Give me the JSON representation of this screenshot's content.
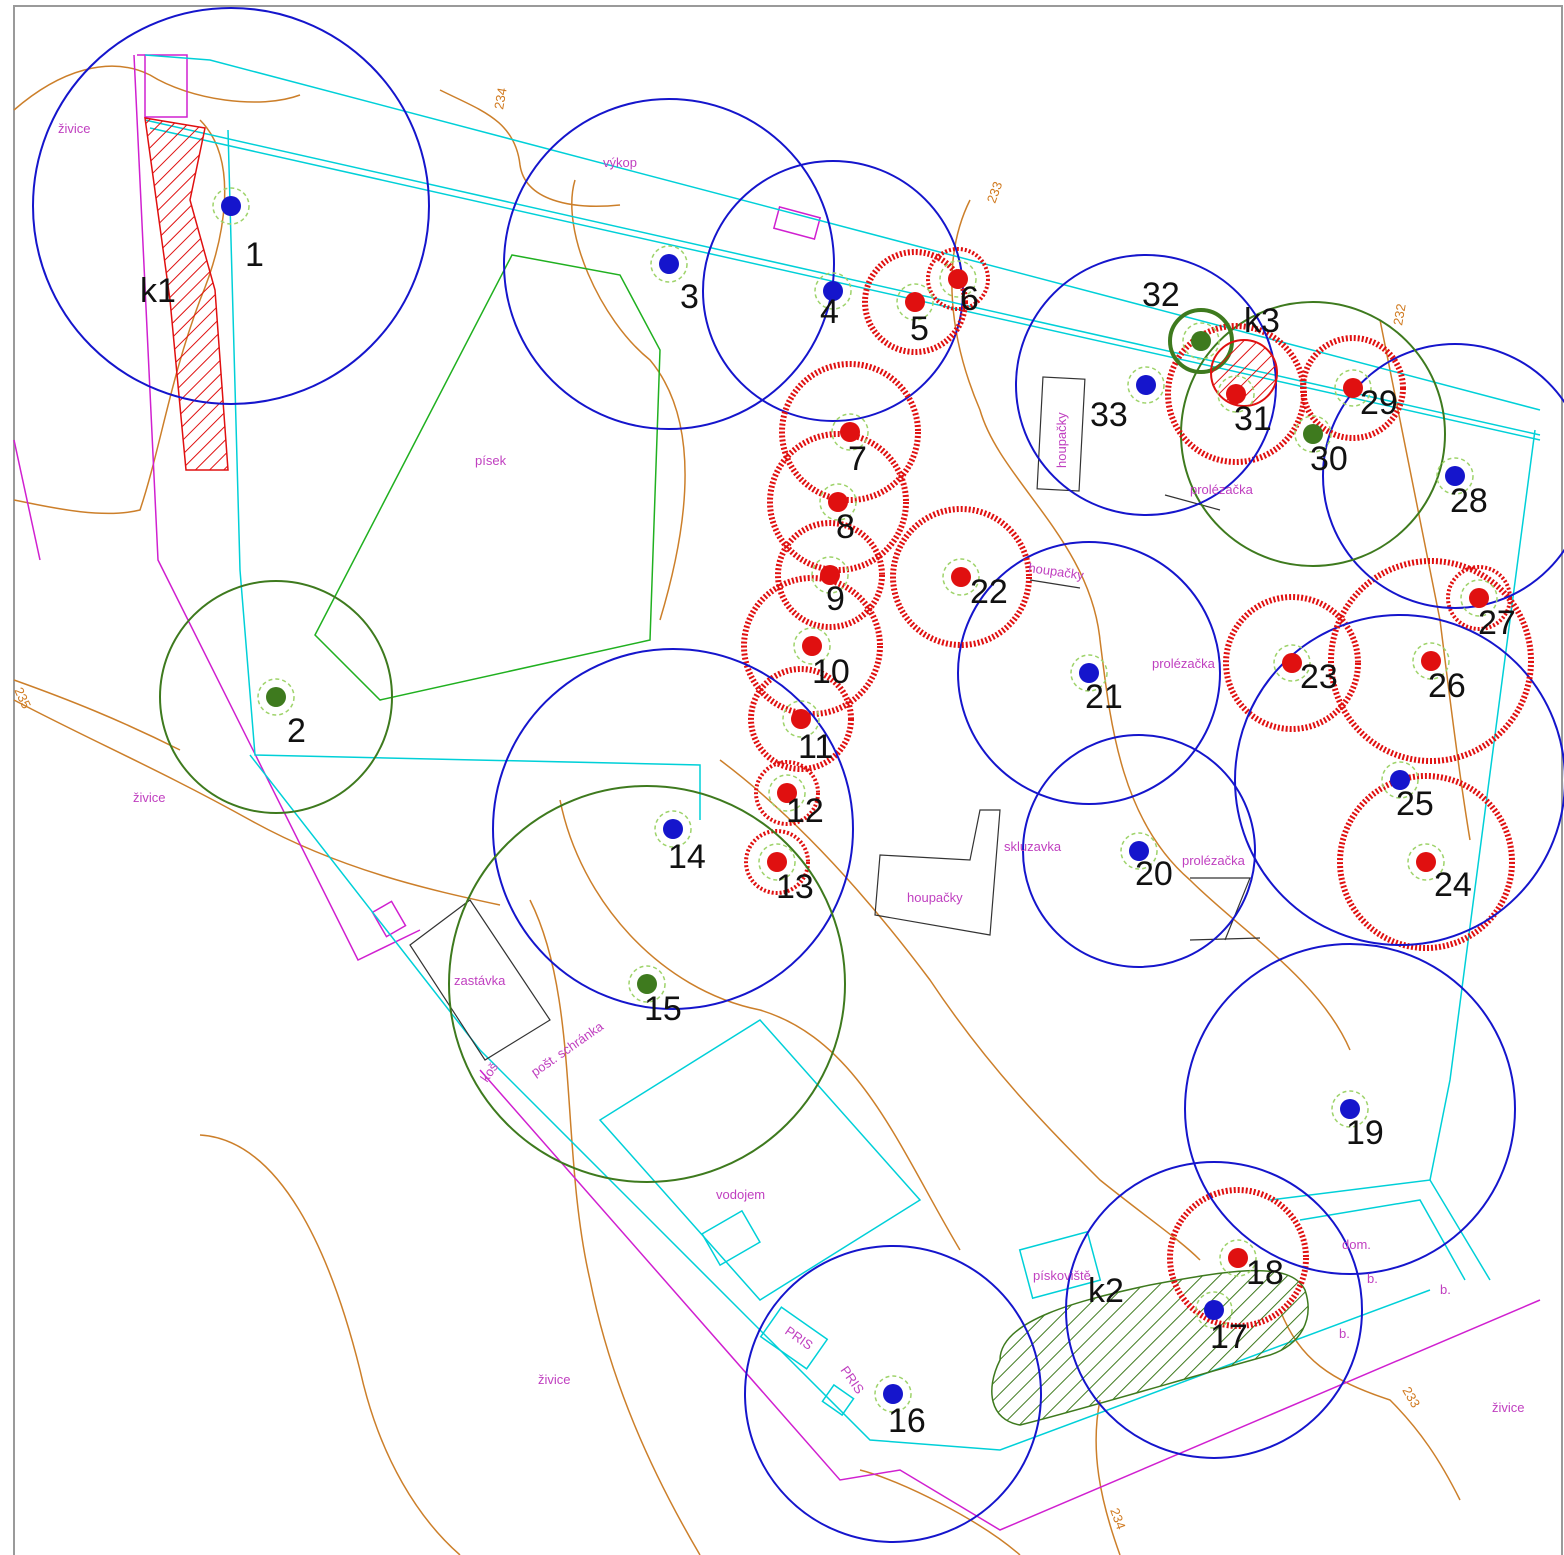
{
  "colors": {
    "frame": "#9a9a9a",
    "existing": "#1515cc",
    "new": "#3e7a1e",
    "removed": "#e01010",
    "zone": "#1515cc",
    "path": "#00d0d8",
    "fence": "#d020d0",
    "contour": "#cc7f2a",
    "lawn": "#20b020",
    "label": "#c040c0",
    "number": "#111111"
  },
  "trees": [
    {
      "id": "1",
      "label": "1",
      "status": "existing"
    },
    {
      "id": "2",
      "label": "2",
      "status": "new"
    },
    {
      "id": "3",
      "label": "3",
      "status": "existing"
    },
    {
      "id": "4",
      "label": "4",
      "status": "existing"
    },
    {
      "id": "5",
      "label": "5",
      "status": "removed"
    },
    {
      "id": "6",
      "label": "6",
      "status": "removed"
    },
    {
      "id": "7",
      "label": "7",
      "status": "removed"
    },
    {
      "id": "8",
      "label": "8",
      "status": "removed"
    },
    {
      "id": "9",
      "label": "9",
      "status": "removed"
    },
    {
      "id": "10",
      "label": "10",
      "status": "removed"
    },
    {
      "id": "11",
      "label": "11",
      "status": "removed"
    },
    {
      "id": "12",
      "label": "12",
      "status": "removed"
    },
    {
      "id": "13",
      "label": "13",
      "status": "removed"
    },
    {
      "id": "14",
      "label": "14",
      "status": "existing"
    },
    {
      "id": "15",
      "label": "15",
      "status": "new"
    },
    {
      "id": "16",
      "label": "16",
      "status": "existing"
    },
    {
      "id": "17",
      "label": "17",
      "status": "existing"
    },
    {
      "id": "18",
      "label": "18",
      "status": "removed"
    },
    {
      "id": "19",
      "label": "19",
      "status": "existing"
    },
    {
      "id": "20",
      "label": "20",
      "status": "existing"
    },
    {
      "id": "21",
      "label": "21",
      "status": "existing"
    },
    {
      "id": "22",
      "label": "22",
      "status": "removed"
    },
    {
      "id": "23",
      "label": "23",
      "status": "removed"
    },
    {
      "id": "24",
      "label": "24",
      "status": "removed"
    },
    {
      "id": "25",
      "label": "25",
      "status": "existing"
    },
    {
      "id": "26",
      "label": "26",
      "status": "removed"
    },
    {
      "id": "27",
      "label": "27",
      "status": "removed"
    },
    {
      "id": "28",
      "label": "28",
      "status": "existing"
    },
    {
      "id": "29",
      "label": "29",
      "status": "removed"
    },
    {
      "id": "30",
      "label": "30",
      "status": "new"
    },
    {
      "id": "31",
      "label": "31",
      "status": "removed"
    },
    {
      "id": "32",
      "label": "32",
      "status": "new"
    },
    {
      "id": "33",
      "label": "33",
      "status": "existing"
    }
  ],
  "shrubs": [
    {
      "id": "k1",
      "label": "k1",
      "status": "removed"
    },
    {
      "id": "k2",
      "label": "k2",
      "status": "new"
    },
    {
      "id": "k3",
      "label": "k3",
      "status": "removed"
    }
  ],
  "area_labels": {
    "zivice_nw": "živice",
    "zivice_w": "živice",
    "zivice_s": "živice",
    "zivice_se": "živice",
    "vykop": "výkop",
    "pisek": "písek",
    "houpacky_ne": "houpačky",
    "houpacky_mid": "houpačky",
    "houpacky_c": "houpačky",
    "prolezacka_ne": "prolézačka",
    "prolezacka_e": "prolézačka",
    "prolezacka_c": "prolézačka",
    "skluzavka": "skluzavka",
    "zastavka": "zastávka",
    "kos": "koš",
    "post_schranka": "pošt. schránka",
    "vodojem": "vodojem",
    "pris1": "PRIS",
    "pris2": "PRIS",
    "piskoviste": "pískoviště",
    "dom": "dom.",
    "b1": "b.",
    "b2": "b.",
    "b3": "b."
  },
  "contour_labels": {
    "c234_top": "234",
    "c233_top": "233",
    "c232": "232",
    "c235": "235",
    "c233_bottom": "233",
    "c234_bottom": "234"
  }
}
